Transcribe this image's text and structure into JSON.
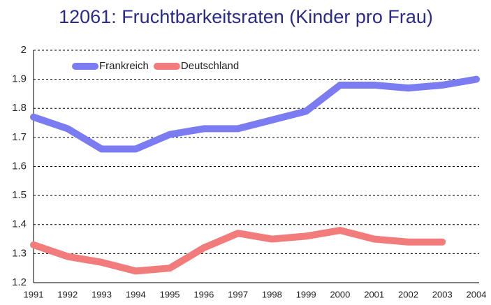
{
  "chart_data": {
    "type": "line",
    "title": "12061: Fruchtbarkeitsraten (Kinder pro Frau)",
    "categories": [
      "1991",
      "1992",
      "1993",
      "1994",
      "1995",
      "1996",
      "1997",
      "1998",
      "1999",
      "2000",
      "2001",
      "2002",
      "2003",
      "2004"
    ],
    "series": [
      {
        "name": "Frankreich",
        "color": "#7b7bf2",
        "values": [
          1.77,
          1.73,
          1.66,
          1.66,
          1.71,
          1.73,
          1.73,
          1.76,
          1.79,
          1.88,
          1.88,
          1.87,
          1.88,
          1.9
        ]
      },
      {
        "name": "Deutschland",
        "color": "#f27b7b",
        "values": [
          1.33,
          1.29,
          1.27,
          1.24,
          1.25,
          1.32,
          1.37,
          1.35,
          1.36,
          1.38,
          1.35,
          1.34,
          1.34,
          null
        ]
      }
    ],
    "ylim": [
      1.2,
      2
    ],
    "yticks": [
      1.2,
      1.3,
      1.4,
      1.5,
      1.6,
      1.7,
      1.8,
      1.9,
      2
    ],
    "grid": true,
    "legend": "top-left"
  }
}
